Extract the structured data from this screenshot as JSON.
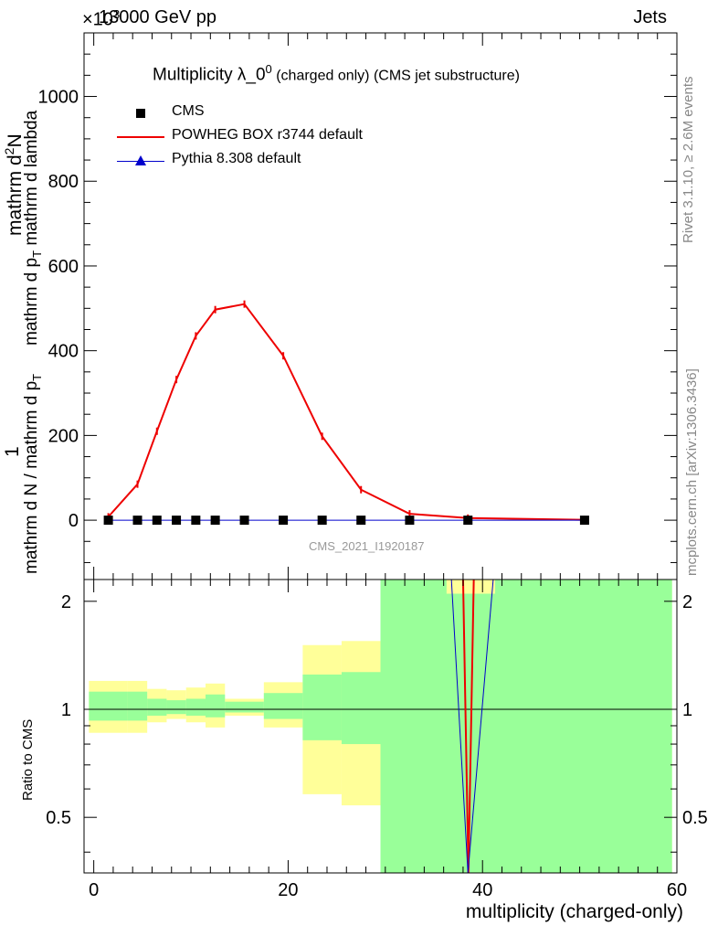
{
  "header": {
    "energy": "13000 GeV pp",
    "category": "Jets",
    "exponent_label": "×10",
    "exponent_power": "3"
  },
  "side_text": {
    "rivet": "Rivet 3.1.10, ≥ 2.6M events",
    "mcplots": "mcplots.cern.ch [arXiv:1306.3436]"
  },
  "title": {
    "main": "Multiplicity λ_0",
    "sup": "0",
    "rest": " (charged only) (CMS jet substructure)"
  },
  "watermark": "CMS_2021_I1920187",
  "top_panel": {
    "ylabel": "1 / (mathrm d N / mathrm d p_T) · mathrm d²N / (mathrm d p_T mathrm d lambda)",
    "ylabel_parts": {
      "num_one": "1",
      "den_left": "mathrm d N / mathrm d p",
      "den_sub": "T",
      "num_main": "mathrm d",
      "num_sup": "2",
      "num_n": "N",
      "den_right_a": "mathrm d p",
      "den_right_sub": "T",
      "den_right_b": " mathrm d lambda"
    },
    "yticks": [
      "0",
      "200",
      "400",
      "600",
      "800",
      "1000"
    ]
  },
  "bottom_panel": {
    "ylabel": "Ratio to CMS",
    "yticks": [
      "0.5",
      "1",
      "2"
    ]
  },
  "xaxis": {
    "label": "multiplicity (charged-only)",
    "ticks": [
      "0",
      "20",
      "40",
      "60"
    ]
  },
  "legend": [
    {
      "name": "CMS",
      "color": "#000000",
      "marker": "square"
    },
    {
      "name": "POWHEG BOX r3744 default",
      "color": "#ee0000",
      "marker": "line"
    },
    {
      "name": "Pythia 8.308 default",
      "color": "#0000cc",
      "marker": "triangle"
    }
  ],
  "chart_data": {
    "type": "line",
    "xlim": [
      -1,
      60
    ],
    "top_ylim": [
      -140,
      1150
    ],
    "top_y_scale_factor": 1000,
    "ratio_ylim": [
      0.35,
      2.3
    ],
    "ratio_scale": "log",
    "xlabel": "multiplicity (charged-only)",
    "series": [
      {
        "name": "CMS",
        "x": [
          1.5,
          4.5,
          6.5,
          8.5,
          10.5,
          12.5,
          15.5,
          19.5,
          23.5,
          27.5,
          32.5,
          38.5,
          50.5
        ],
        "y": [
          0,
          0,
          0,
          0,
          0,
          0,
          0,
          0,
          0,
          0,
          0,
          0,
          0
        ]
      },
      {
        "name": "POWHEG BOX r3744 default",
        "x": [
          1.5,
          4.5,
          6.5,
          8.5,
          10.5,
          12.5,
          15.5,
          19.5,
          23.5,
          27.5,
          32.5,
          38.5,
          50.5
        ],
        "y": [
          8,
          85,
          210,
          332,
          435,
          497,
          510,
          388,
          198,
          72,
          15,
          5,
          1
        ]
      },
      {
        "name": "Pythia 8.308 default",
        "x": [
          1.5,
          4.5,
          6.5,
          8.5,
          10.5,
          12.5,
          15.5,
          19.5,
          23.5,
          27.5,
          32.5,
          38.5,
          50.5
        ],
        "y": [
          0,
          0,
          0,
          0,
          0,
          0,
          0,
          0,
          0,
          0,
          0,
          0,
          0
        ]
      }
    ],
    "ratio_bands": [
      {
        "x0": -0.5,
        "x1": 3.5,
        "yellow": [
          0.86,
          1.2
        ],
        "green": [
          0.93,
          1.12
        ]
      },
      {
        "x0": 3.5,
        "x1": 5.5,
        "yellow": [
          0.86,
          1.2
        ],
        "green": [
          0.93,
          1.12
        ]
      },
      {
        "x0": 5.5,
        "x1": 7.5,
        "yellow": [
          0.92,
          1.14
        ],
        "green": [
          0.96,
          1.07
        ]
      },
      {
        "x0": 7.5,
        "x1": 9.5,
        "yellow": [
          0.94,
          1.13
        ],
        "green": [
          0.97,
          1.06
        ]
      },
      {
        "x0": 9.5,
        "x1": 11.5,
        "yellow": [
          0.92,
          1.15
        ],
        "green": [
          0.96,
          1.07
        ]
      },
      {
        "x0": 11.5,
        "x1": 13.5,
        "yellow": [
          0.89,
          1.18
        ],
        "green": [
          0.95,
          1.1
        ]
      },
      {
        "x0": 13.5,
        "x1": 17.5,
        "yellow": [
          0.96,
          1.07
        ],
        "green": [
          0.98,
          1.05
        ]
      },
      {
        "x0": 17.5,
        "x1": 21.5,
        "yellow": [
          0.89,
          1.19
        ],
        "green": [
          0.94,
          1.11
        ]
      },
      {
        "x0": 21.5,
        "x1": 25.5,
        "yellow": [
          0.58,
          1.51
        ],
        "green": [
          0.82,
          1.25
        ]
      },
      {
        "x0": 25.5,
        "x1": 29.5,
        "yellow": [
          0.54,
          1.55
        ],
        "green": [
          0.8,
          1.27
        ]
      },
      {
        "x0": 29.5,
        "x1": 59.5,
        "yellow": [
          0.35,
          2.3
        ],
        "green": [
          0.35,
          2.3
        ]
      }
    ],
    "ratio_yellow_notch": {
      "x0": 36.3,
      "x1": 41.3,
      "y0": 2.1,
      "y1": 2.3
    },
    "ratio_powheg_v": {
      "x_left": 38.0,
      "x_bottom": 38.55,
      "x_right": 39.1
    },
    "ratio_pythia_v": {
      "x_left": 36.8,
      "x_bottom": 38.5,
      "x_right": 41.1
    }
  }
}
